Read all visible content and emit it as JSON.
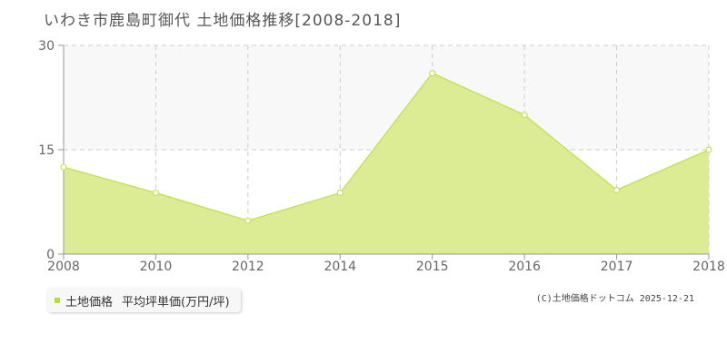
{
  "title": "いわき市鹿島町御代 土地価格推移[2008-2018]",
  "legend": {
    "series_label": "土地価格",
    "unit_label": "平均坪単価(万円/坪)"
  },
  "copyright": "(C)土地価格ドットコム 2025-12-21",
  "colors": {
    "fill": "#dbec94",
    "line": "#c5e25a",
    "point_stroke": "#c5e25a",
    "grid": "#cccccc",
    "band": "#f8f8f8",
    "legend_marker": "#b7dd3f"
  },
  "chart_data": {
    "type": "area",
    "x": [
      "2008",
      "2010",
      "2012",
      "2014",
      "2015",
      "2016",
      "2017",
      "2018"
    ],
    "series": [
      {
        "name": "土地価格",
        "values": [
          12.5,
          8.8,
          4.8,
          8.8,
          26.0,
          20.0,
          9.2,
          15.0
        ]
      }
    ],
    "yticks": [
      0,
      15,
      30
    ],
    "ylim": [
      0,
      30
    ],
    "grid": true
  }
}
